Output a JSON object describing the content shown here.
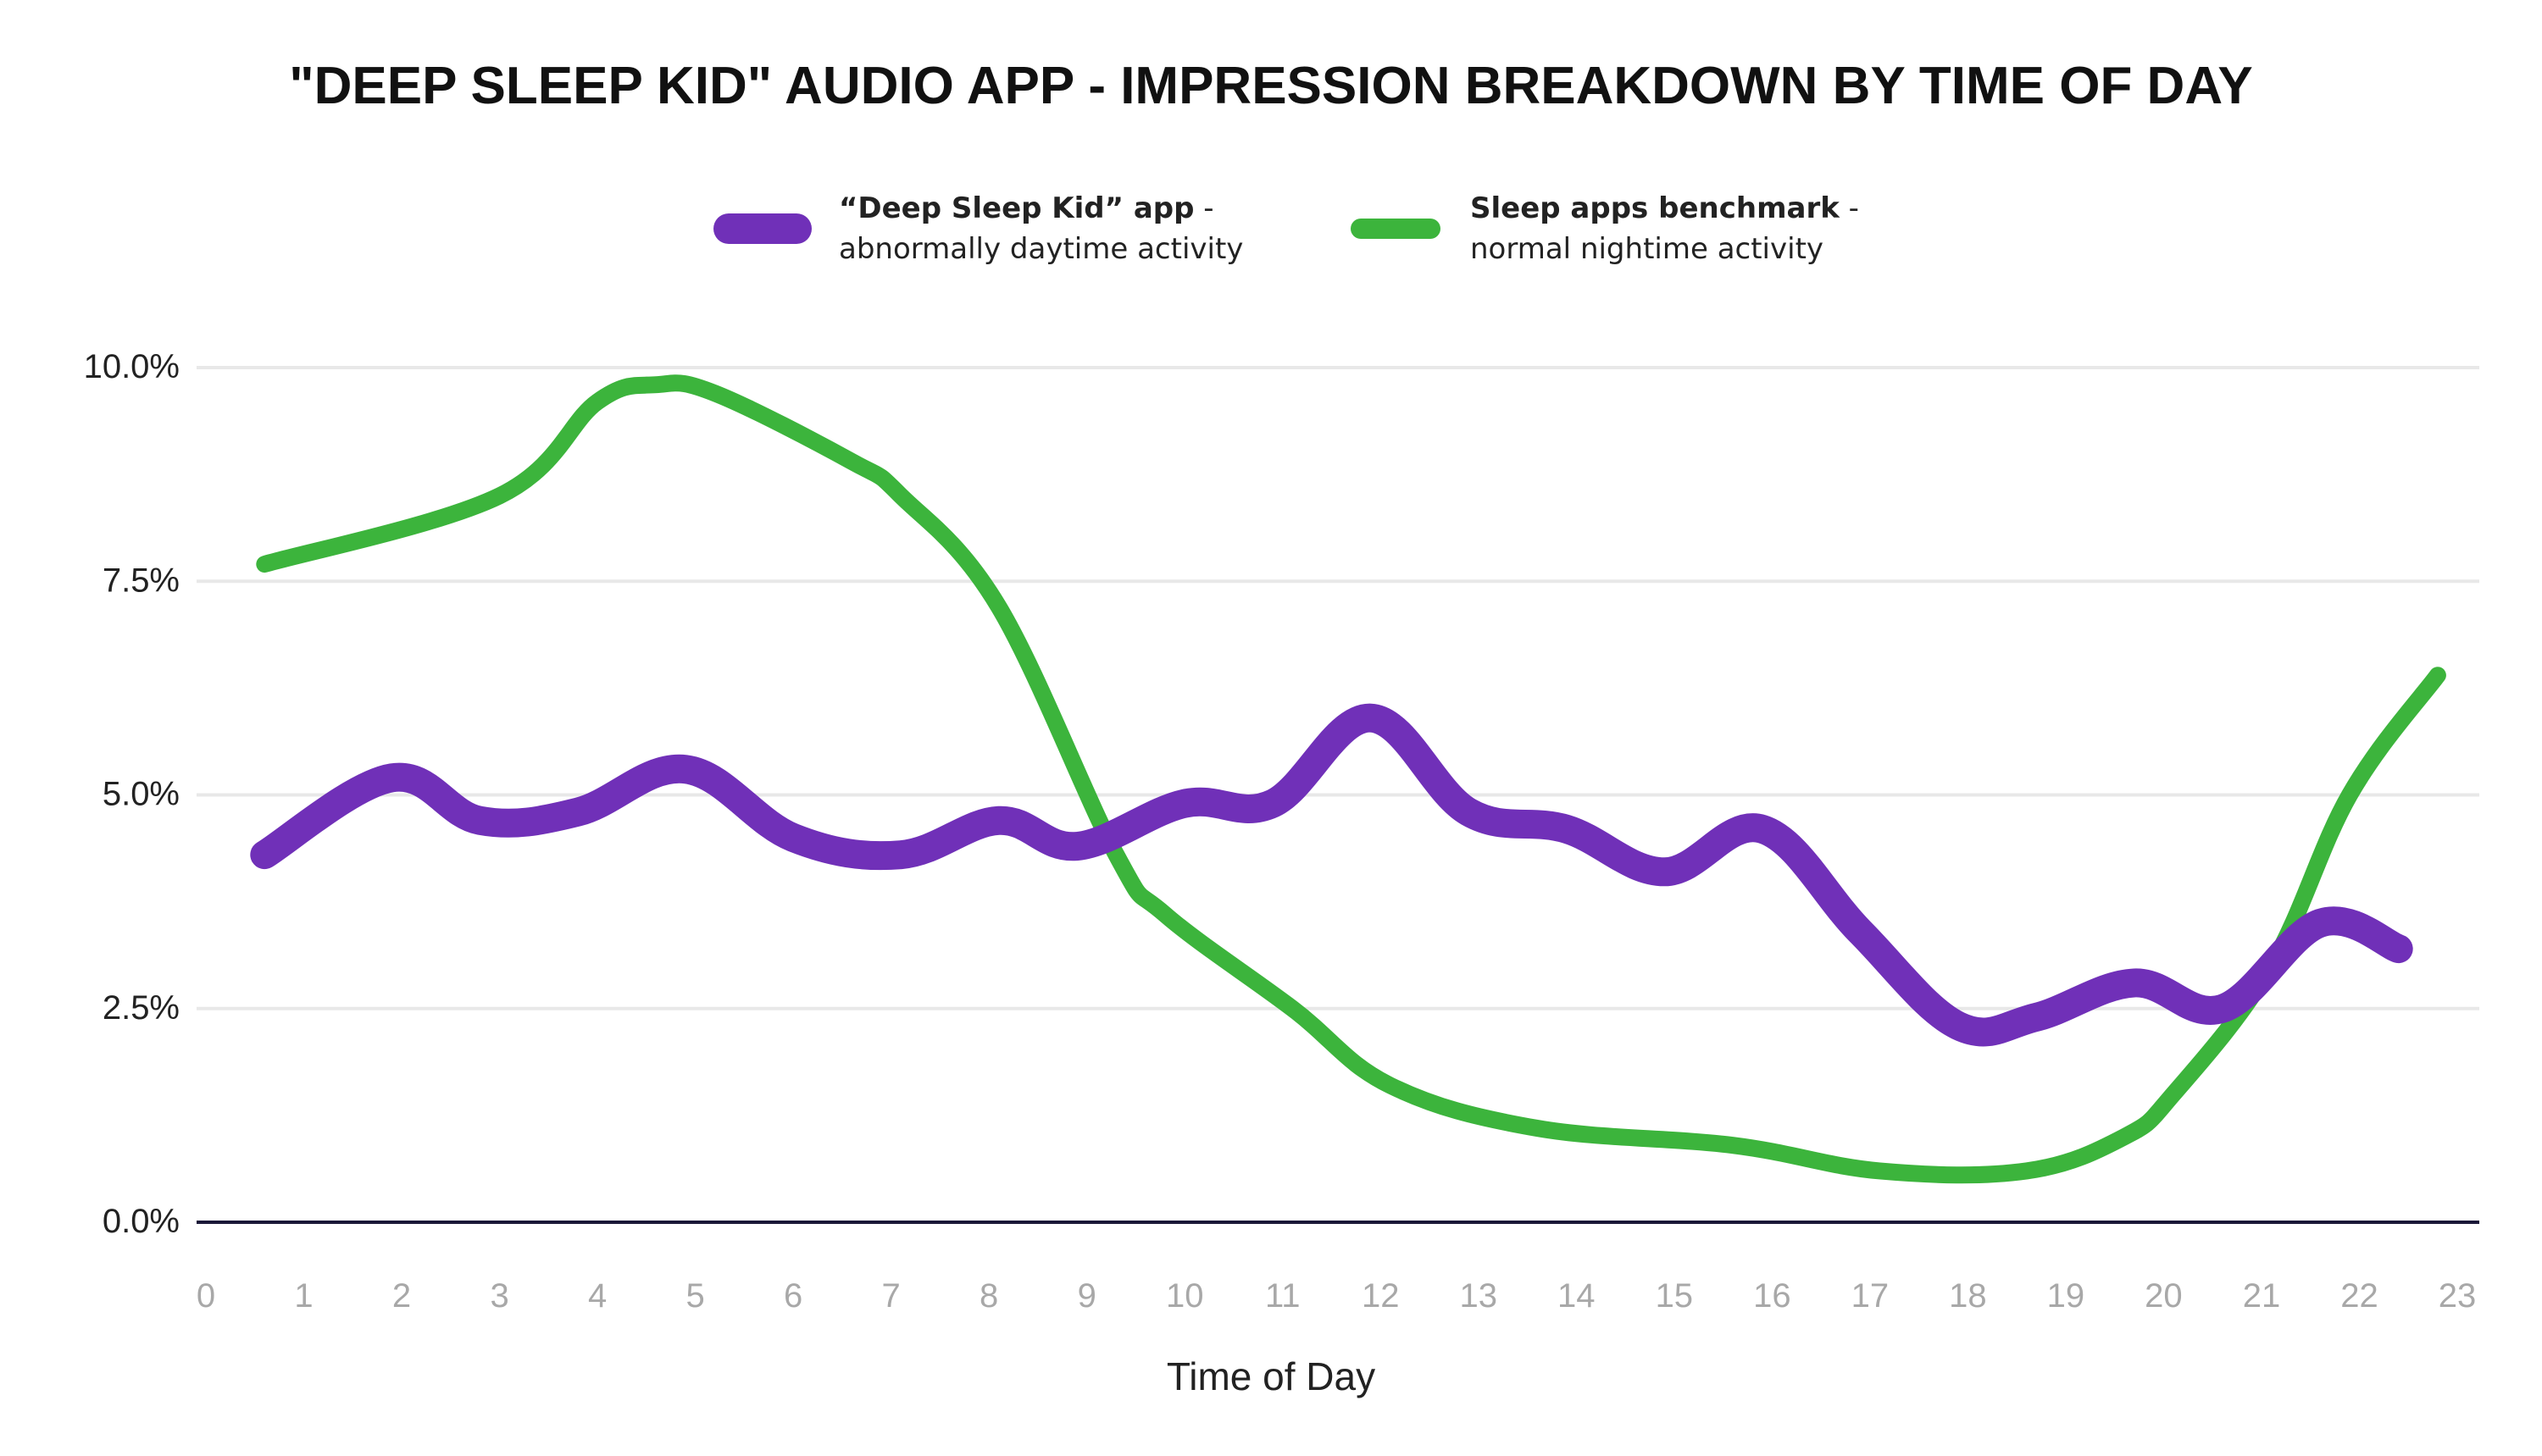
{
  "chart_data": {
    "type": "line",
    "title": "\"DEEP SLEEP KID\" AUDIO APP - IMPRESSION BREAKDOWN BY TIME OF DAY",
    "xlabel": "Time of Day",
    "ylabel": "",
    "x_ticks": [
      "0",
      "1",
      "2",
      "3",
      "4",
      "5",
      "6",
      "7",
      "8",
      "9",
      "10",
      "11",
      "12",
      "13",
      "14",
      "15",
      "16",
      "17",
      "18",
      "19",
      "20",
      "21",
      "22",
      "23"
    ],
    "y_ticks": [
      "0.0%",
      "2.5%",
      "5.0%",
      "7.5%",
      "10.0%"
    ],
    "ylim": [
      0,
      10
    ],
    "grid": true,
    "legend_position": "top-center",
    "series": [
      {
        "name_bold": "“Deep Sleep Kid” app",
        "name_suffix": " -",
        "name_sub": "abnormally daytime activity",
        "color": "#7030b8",
        "x": [
          0.6,
          1.9,
          2.8,
          3.8,
          4.9,
          6.0,
          7.1,
          8.1,
          8.9,
          10.0,
          10.9,
          11.9,
          12.9,
          13.9,
          14.9,
          15.9,
          16.9,
          17.9,
          18.7,
          19.7,
          20.6,
          21.6,
          22.4
        ],
        "y": [
          4.3,
          5.2,
          4.7,
          4.8,
          5.3,
          4.5,
          4.3,
          4.7,
          4.4,
          4.9,
          4.9,
          5.9,
          4.8,
          4.6,
          4.1,
          4.6,
          3.4,
          2.3,
          2.4,
          2.8,
          2.5,
          3.5,
          3.2
        ]
      },
      {
        "name_bold": "Sleep apps benchmark",
        "name_suffix": " -",
        "name_sub": "normal nightime activity",
        "color": "#3cb43c",
        "x": [
          0.6,
          3.0,
          4.0,
          4.6,
          5.2,
          6.6,
          7.1,
          8.1,
          9.3,
          9.8,
          11.1,
          12.1,
          13.6,
          15.6,
          17.1,
          18.6,
          19.6,
          20.1,
          21.1,
          21.9,
          22.8
        ],
        "y": [
          7.7,
          8.5,
          9.6,
          9.8,
          9.7,
          8.9,
          8.5,
          7.2,
          4.3,
          3.6,
          2.5,
          1.6,
          1.1,
          0.9,
          0.6,
          0.6,
          1.0,
          1.5,
          3.0,
          5.0,
          6.4
        ]
      }
    ]
  }
}
